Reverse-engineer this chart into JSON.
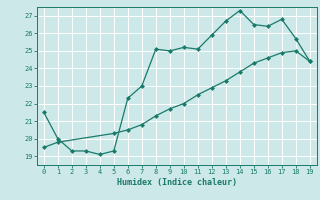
{
  "title": "",
  "xlabel": "Humidex (Indice chaleur)",
  "bg_color": "#cce8e8",
  "line_color": "#1a7a6a",
  "grid_color": "#ffffff",
  "spine_color": "#1a7a6a",
  "xlim": [
    -0.5,
    19.5
  ],
  "ylim": [
    18.5,
    27.5
  ],
  "xticks": [
    0,
    1,
    2,
    3,
    4,
    5,
    6,
    7,
    8,
    9,
    10,
    11,
    12,
    13,
    14,
    15,
    16,
    17,
    18,
    19
  ],
  "yticks": [
    19,
    20,
    21,
    22,
    23,
    24,
    25,
    26,
    27
  ],
  "line1_x": [
    0,
    1,
    2,
    3,
    4,
    5,
    6,
    7,
    8,
    9,
    10,
    11,
    12,
    13,
    14,
    15,
    16,
    17,
    18,
    19
  ],
  "line1_y": [
    21.5,
    20.0,
    19.3,
    19.3,
    19.1,
    19.3,
    22.3,
    23.0,
    25.1,
    25.0,
    25.2,
    25.1,
    25.9,
    26.7,
    27.3,
    26.5,
    26.4,
    26.8,
    25.7,
    24.4
  ],
  "line2_x": [
    0,
    1,
    5,
    6,
    7,
    8,
    9,
    10,
    11,
    12,
    13,
    14,
    15,
    16,
    17,
    18,
    19
  ],
  "line2_y": [
    19.5,
    19.8,
    20.3,
    20.5,
    20.8,
    21.3,
    21.7,
    22.0,
    22.5,
    22.9,
    23.3,
    23.8,
    24.3,
    24.6,
    24.9,
    25.0,
    24.4
  ]
}
